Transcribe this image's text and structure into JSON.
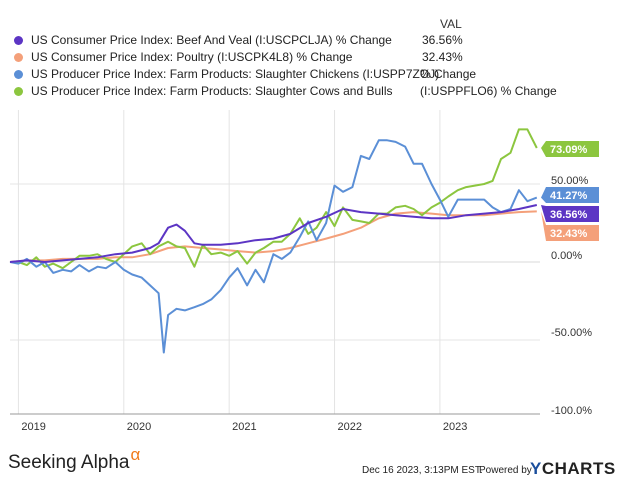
{
  "header": {
    "val_label": "VAL"
  },
  "chart_data": {
    "type": "line",
    "x_ticks": [
      "2019",
      "2020",
      "2021",
      "2022",
      "2023"
    ],
    "y_ticks": [
      "50.00%",
      "0.00%",
      "-50.00%",
      "-100.0%"
    ],
    "y_tick_values": [
      50,
      0,
      -50,
      -100
    ],
    "ylim": [
      -100,
      100
    ],
    "xlim": [
      2018.92,
      2023.95
    ],
    "series": [
      {
        "name": "US Consumer Price Index: Beef And Veal (I:USCPCLJA) % Change",
        "legend_value": "36.56%",
        "end_label": "36.56%",
        "color": "#5c35c4",
        "points": [
          [
            2018.92,
            0
          ],
          [
            2019.08,
            1
          ],
          [
            2019.25,
            0
          ],
          [
            2019.42,
            1
          ],
          [
            2019.58,
            2
          ],
          [
            2019.75,
            3
          ],
          [
            2019.92,
            5
          ],
          [
            2020.08,
            6
          ],
          [
            2020.25,
            9
          ],
          [
            2020.33,
            12
          ],
          [
            2020.42,
            22
          ],
          [
            2020.5,
            24
          ],
          [
            2020.58,
            20
          ],
          [
            2020.67,
            12
          ],
          [
            2020.75,
            11
          ],
          [
            2020.92,
            11
          ],
          [
            2021.08,
            12
          ],
          [
            2021.25,
            14
          ],
          [
            2021.42,
            15
          ],
          [
            2021.58,
            18
          ],
          [
            2021.75,
            25
          ],
          [
            2021.92,
            29
          ],
          [
            2022.08,
            34
          ],
          [
            2022.25,
            32
          ],
          [
            2022.42,
            31
          ],
          [
            2022.58,
            30
          ],
          [
            2022.75,
            29
          ],
          [
            2022.92,
            28
          ],
          [
            2023.08,
            28
          ],
          [
            2023.25,
            30
          ],
          [
            2023.42,
            31
          ],
          [
            2023.58,
            32
          ],
          [
            2023.75,
            34
          ],
          [
            2023.92,
            36.56
          ]
        ]
      },
      {
        "name": "US Consumer Price Index: Poultry (I:USCPK4L8) % Change",
        "legend_value": "32.43%",
        "end_label": "32.43%",
        "color": "#f4a07a",
        "points": [
          [
            2018.92,
            0
          ],
          [
            2019.08,
            1
          ],
          [
            2019.25,
            1
          ],
          [
            2019.42,
            2
          ],
          [
            2019.58,
            2
          ],
          [
            2019.75,
            2
          ],
          [
            2019.92,
            3
          ],
          [
            2020.08,
            3
          ],
          [
            2020.25,
            5
          ],
          [
            2020.42,
            9
          ],
          [
            2020.58,
            10
          ],
          [
            2020.75,
            9
          ],
          [
            2020.92,
            8
          ],
          [
            2021.08,
            7
          ],
          [
            2021.25,
            6
          ],
          [
            2021.42,
            7
          ],
          [
            2021.58,
            9
          ],
          [
            2021.75,
            12
          ],
          [
            2021.92,
            15
          ],
          [
            2022.08,
            18
          ],
          [
            2022.25,
            22
          ],
          [
            2022.42,
            28
          ],
          [
            2022.58,
            31
          ],
          [
            2022.75,
            32
          ],
          [
            2022.92,
            31
          ],
          [
            2023.08,
            30
          ],
          [
            2023.25,
            30
          ],
          [
            2023.42,
            30
          ],
          [
            2023.58,
            31
          ],
          [
            2023.75,
            32
          ],
          [
            2023.92,
            32.43
          ]
        ]
      },
      {
        "name": "US Producer Price Index: Farm Products: Slaughter Chickens (I:USPP7ZOJ)",
        "legend_value": "% Change",
        "end_label": "41.27%",
        "color": "#5b8fd6",
        "points": [
          [
            2018.92,
            0
          ],
          [
            2019.0,
            -1
          ],
          [
            2019.08,
            2
          ],
          [
            2019.17,
            -3
          ],
          [
            2019.25,
            0
          ],
          [
            2019.33,
            -7
          ],
          [
            2019.42,
            -5
          ],
          [
            2019.5,
            -6
          ],
          [
            2019.58,
            -2
          ],
          [
            2019.67,
            -6
          ],
          [
            2019.75,
            -3
          ],
          [
            2019.83,
            -4
          ],
          [
            2019.92,
            0
          ],
          [
            2020.0,
            -5
          ],
          [
            2020.08,
            -8
          ],
          [
            2020.17,
            -10
          ],
          [
            2020.25,
            -15
          ],
          [
            2020.33,
            -20
          ],
          [
            2020.38,
            -58
          ],
          [
            2020.42,
            -34
          ],
          [
            2020.5,
            -30
          ],
          [
            2020.58,
            -31
          ],
          [
            2020.67,
            -29
          ],
          [
            2020.75,
            -27
          ],
          [
            2020.83,
            -24
          ],
          [
            2020.92,
            -18
          ],
          [
            2021.0,
            -10
          ],
          [
            2021.08,
            -4
          ],
          [
            2021.17,
            -15
          ],
          [
            2021.25,
            -5
          ],
          [
            2021.33,
            -13
          ],
          [
            2021.42,
            5
          ],
          [
            2021.5,
            2
          ],
          [
            2021.58,
            6
          ],
          [
            2021.67,
            16
          ],
          [
            2021.75,
            26
          ],
          [
            2021.83,
            14
          ],
          [
            2021.92,
            25
          ],
          [
            2022.0,
            49
          ],
          [
            2022.08,
            45
          ],
          [
            2022.17,
            48
          ],
          [
            2022.25,
            68
          ],
          [
            2022.33,
            66
          ],
          [
            2022.42,
            78
          ],
          [
            2022.5,
            78
          ],
          [
            2022.58,
            77
          ],
          [
            2022.67,
            74
          ],
          [
            2022.75,
            63
          ],
          [
            2022.83,
            63
          ],
          [
            2022.92,
            50
          ],
          [
            2023.0,
            40
          ],
          [
            2023.08,
            29
          ],
          [
            2023.17,
            40
          ],
          [
            2023.25,
            40
          ],
          [
            2023.42,
            40
          ],
          [
            2023.5,
            35
          ],
          [
            2023.58,
            32
          ],
          [
            2023.67,
            34
          ],
          [
            2023.75,
            46
          ],
          [
            2023.83,
            39
          ],
          [
            2023.92,
            41.27
          ]
        ]
      },
      {
        "name": "US Producer Price Index: Farm Products: Slaughter Cows and Bulls",
        "legend_value": "(I:USPPFLO6) % Change",
        "end_label": "73.09%",
        "color": "#8cc63f",
        "points": [
          [
            2018.92,
            0
          ],
          [
            2019.0,
            0
          ],
          [
            2019.08,
            -2
          ],
          [
            2019.17,
            3
          ],
          [
            2019.25,
            -3
          ],
          [
            2019.33,
            -1
          ],
          [
            2019.42,
            -4
          ],
          [
            2019.5,
            0
          ],
          [
            2019.58,
            4
          ],
          [
            2019.67,
            4
          ],
          [
            2019.75,
            5
          ],
          [
            2019.83,
            2
          ],
          [
            2019.92,
            0
          ],
          [
            2020.0,
            5
          ],
          [
            2020.08,
            10
          ],
          [
            2020.17,
            12
          ],
          [
            2020.25,
            5
          ],
          [
            2020.33,
            10
          ],
          [
            2020.42,
            13
          ],
          [
            2020.5,
            10
          ],
          [
            2020.58,
            9
          ],
          [
            2020.67,
            -3
          ],
          [
            2020.75,
            11
          ],
          [
            2020.83,
            5
          ],
          [
            2020.92,
            6
          ],
          [
            2021.0,
            4
          ],
          [
            2021.08,
            7
          ],
          [
            2021.17,
            -1
          ],
          [
            2021.25,
            6
          ],
          [
            2021.33,
            9
          ],
          [
            2021.42,
            13
          ],
          [
            2021.5,
            13
          ],
          [
            2021.58,
            18
          ],
          [
            2021.67,
            28
          ],
          [
            2021.75,
            18
          ],
          [
            2021.83,
            22
          ],
          [
            2021.92,
            32
          ],
          [
            2022.0,
            23
          ],
          [
            2022.08,
            35
          ],
          [
            2022.17,
            27
          ],
          [
            2022.25,
            26
          ],
          [
            2022.33,
            25
          ],
          [
            2022.42,
            31
          ],
          [
            2022.5,
            31
          ],
          [
            2022.58,
            35
          ],
          [
            2022.67,
            36
          ],
          [
            2022.75,
            34
          ],
          [
            2022.83,
            30
          ],
          [
            2022.92,
            35
          ],
          [
            2023.0,
            38
          ],
          [
            2023.08,
            42
          ],
          [
            2023.17,
            46
          ],
          [
            2023.25,
            48
          ],
          [
            2023.42,
            50
          ],
          [
            2023.5,
            52
          ],
          [
            2023.58,
            66
          ],
          [
            2023.67,
            70
          ],
          [
            2023.75,
            85
          ],
          [
            2023.83,
            85
          ],
          [
            2023.92,
            73.09
          ]
        ]
      }
    ]
  },
  "footer": {
    "brand": "Seeking Alpha",
    "brand_mark": "α",
    "timestamp": "Dec 16 2023, 3:13PM EST.",
    "powered_by": "Powered by",
    "ycharts_y": "Y",
    "ycharts_rest": "CHARTS"
  }
}
